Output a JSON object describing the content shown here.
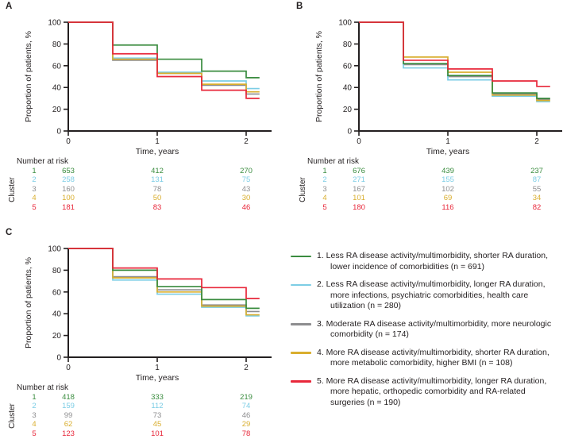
{
  "colors": {
    "cluster1": "#3a8c3f",
    "cluster2": "#7ccde5",
    "cluster3": "#8d8d8f",
    "cluster4": "#d9ae2e",
    "cluster5": "#e8273a",
    "axis": "#231f20",
    "text": "#231f20"
  },
  "chart_data": [
    {
      "type": "line",
      "subtype": "kaplan-meier-step",
      "panel": "A",
      "xlabel": "Time, years",
      "ylabel": "Proportion of patients, %",
      "xlim": [
        0,
        2.28
      ],
      "ylim": [
        0,
        100
      ],
      "xticks": [
        "0",
        "1",
        "2"
      ],
      "yticks": [
        "0",
        "20",
        "40",
        "60",
        "80",
        "100"
      ],
      "grid": false,
      "step_times": [
        0,
        0.5,
        1,
        1.5,
        2,
        2.15
      ],
      "series": [
        {
          "name": "Cluster 1",
          "color_key": "cluster1",
          "values": [
            100,
            79,
            66,
            55,
            49
          ]
        },
        {
          "name": "Cluster 2",
          "color_key": "cluster2",
          "values": [
            100,
            67,
            54,
            46,
            39
          ]
        },
        {
          "name": "Cluster 3",
          "color_key": "cluster3",
          "values": [
            100,
            65,
            53,
            42,
            34
          ]
        },
        {
          "name": "Cluster 4",
          "color_key": "cluster4",
          "values": [
            100,
            66,
            53,
            43,
            36
          ]
        },
        {
          "name": "Cluster 5",
          "color_key": "cluster5",
          "values": [
            100,
            71,
            50,
            37.5,
            30
          ]
        }
      ],
      "number_at_risk": {
        "header": "Number at risk",
        "row_axis_label": "Cluster",
        "time_columns": [
          "0",
          "1",
          "2"
        ],
        "rows": [
          {
            "cluster": "1",
            "color_key": "cluster1",
            "values": [
              "653",
              "412",
              "270"
            ]
          },
          {
            "cluster": "2",
            "color_key": "cluster2",
            "values": [
              "258",
              "131",
              "75"
            ]
          },
          {
            "cluster": "3",
            "color_key": "cluster3",
            "values": [
              "160",
              "78",
              "43"
            ]
          },
          {
            "cluster": "4",
            "color_key": "cluster4",
            "values": [
              "100",
              "50",
              "30"
            ]
          },
          {
            "cluster": "5",
            "color_key": "cluster5",
            "values": [
              "181",
              "83",
              "46"
            ]
          }
        ]
      }
    },
    {
      "type": "line",
      "subtype": "kaplan-meier-step",
      "panel": "B",
      "xlabel": "Time, years",
      "ylabel": "Proportion of patients, %",
      "xlim": [
        0,
        2.28
      ],
      "ylim": [
        0,
        100
      ],
      "xticks": [
        "0",
        "1",
        "2"
      ],
      "yticks": [
        "0",
        "20",
        "40",
        "60",
        "80",
        "100"
      ],
      "grid": false,
      "step_times": [
        0,
        0.5,
        1,
        1.5,
        2,
        2.15
      ],
      "series": [
        {
          "name": "Cluster 1",
          "color_key": "cluster1",
          "values": [
            100,
            62,
            51,
            35,
            30
          ]
        },
        {
          "name": "Cluster 2",
          "color_key": "cluster2",
          "values": [
            100,
            58,
            47,
            32,
            27
          ]
        },
        {
          "name": "Cluster 3",
          "color_key": "cluster3",
          "values": [
            100,
            61,
            50,
            34,
            29
          ]
        },
        {
          "name": "Cluster 4",
          "color_key": "cluster4",
          "values": [
            100,
            68,
            54,
            33,
            28
          ]
        },
        {
          "name": "Cluster 5",
          "color_key": "cluster5",
          "values": [
            100,
            65,
            57,
            46,
            41
          ]
        }
      ],
      "number_at_risk": {
        "header": "Number at risk",
        "row_axis_label": "Cluster",
        "time_columns": [
          "0",
          "1",
          "2"
        ],
        "rows": [
          {
            "cluster": "1",
            "color_key": "cluster1",
            "values": [
              "676",
              "439",
              "237"
            ]
          },
          {
            "cluster": "2",
            "color_key": "cluster2",
            "values": [
              "271",
              "155",
              "87"
            ]
          },
          {
            "cluster": "3",
            "color_key": "cluster3",
            "values": [
              "167",
              "102",
              "55"
            ]
          },
          {
            "cluster": "4",
            "color_key": "cluster4",
            "values": [
              "101",
              "69",
              "34"
            ]
          },
          {
            "cluster": "5",
            "color_key": "cluster5",
            "values": [
              "180",
              "116",
              "82"
            ]
          }
        ]
      }
    },
    {
      "type": "line",
      "subtype": "kaplan-meier-step",
      "panel": "C",
      "xlabel": "Time, years",
      "ylabel": "Proportion of patients, %",
      "xlim": [
        0,
        2.28
      ],
      "ylim": [
        0,
        100
      ],
      "xticks": [
        "0",
        "1",
        "2"
      ],
      "yticks": [
        "0",
        "20",
        "40",
        "60",
        "80",
        "100"
      ],
      "grid": false,
      "step_times": [
        0,
        0.5,
        1,
        1.5,
        2,
        2.15
      ],
      "series": [
        {
          "name": "Cluster 1",
          "color_key": "cluster1",
          "values": [
            100,
            80,
            65,
            53,
            45
          ]
        },
        {
          "name": "Cluster 2",
          "color_key": "cluster2",
          "values": [
            100,
            71,
            58,
            46,
            38
          ]
        },
        {
          "name": "Cluster 3",
          "color_key": "cluster3",
          "values": [
            100,
            74,
            62,
            48,
            42
          ]
        },
        {
          "name": "Cluster 4",
          "color_key": "cluster4",
          "values": [
            100,
            73,
            60,
            47,
            39
          ]
        },
        {
          "name": "Cluster 5",
          "color_key": "cluster5",
          "values": [
            100,
            82,
            72,
            64,
            54
          ]
        }
      ],
      "number_at_risk": {
        "header": "Number at risk",
        "row_axis_label": "Cluster",
        "time_columns": [
          "0",
          "1",
          "2"
        ],
        "rows": [
          {
            "cluster": "1",
            "color_key": "cluster1",
            "values": [
              "418",
              "333",
              "219"
            ]
          },
          {
            "cluster": "2",
            "color_key": "cluster2",
            "values": [
              "159",
              "112",
              "74"
            ]
          },
          {
            "cluster": "3",
            "color_key": "cluster3",
            "values": [
              "99",
              "73",
              "46"
            ]
          },
          {
            "cluster": "4",
            "color_key": "cluster4",
            "values": [
              "62",
              "45",
              "29"
            ]
          },
          {
            "cluster": "5",
            "color_key": "cluster5",
            "values": [
              "123",
              "101",
              "78"
            ]
          }
        ]
      }
    }
  ],
  "legend": {
    "items": [
      {
        "color_key": "cluster1",
        "label": "1. Less RA disease activity/multimorbidity, shorter RA duration, lower incidence of comorbidities (n = 691)"
      },
      {
        "color_key": "cluster2",
        "label": "2. Less RA disease activity/multimorbidity, longer RA duration, more infections, psychiatric comorbidities, health care utilization (n = 280)"
      },
      {
        "color_key": "cluster3",
        "label": "3. Moderate RA disease activity/multimorbidity, more neurologic comorbidity (n = 174)"
      },
      {
        "color_key": "cluster4",
        "label": "4. More RA disease activity/multimorbidity, shorter RA duration, more metabolic comorbidity, higher BMI (n = 108)"
      },
      {
        "color_key": "cluster5",
        "label": "5. More RA disease activity/multimorbidity, longer RA duration, more hepatic, orthopedic comorbidity and RA-related surgeries (n = 190)"
      }
    ]
  }
}
